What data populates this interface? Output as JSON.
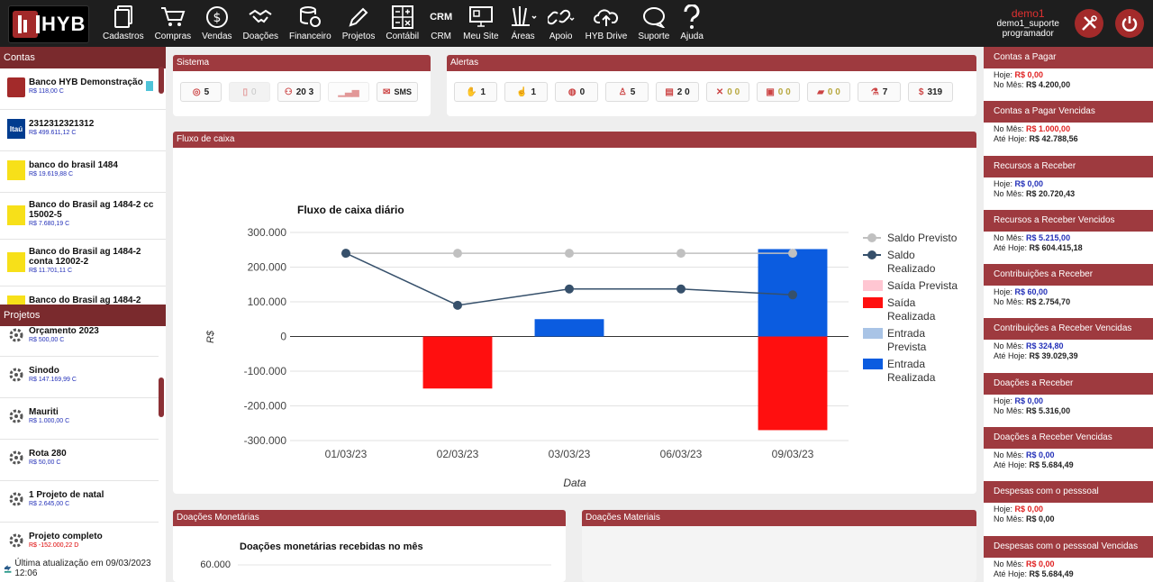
{
  "brand": {
    "name": "HYB"
  },
  "nav": [
    {
      "label": "Cadastros",
      "icon": "document-icon"
    },
    {
      "label": "Compras",
      "icon": "cart-icon"
    },
    {
      "label": "Vendas",
      "icon": "dollar-icon"
    },
    {
      "label": "Doações",
      "icon": "handshake-icon"
    },
    {
      "label": "Financeiro",
      "icon": "coins-icon"
    },
    {
      "label": "Projetos",
      "icon": "pencil-icon"
    },
    {
      "label": "Contábil",
      "icon": "calculator-icon"
    },
    {
      "label": "CRM",
      "icon": "crm-icon",
      "icon_text": "CRM"
    },
    {
      "label": "Meu Site",
      "icon": "monitor-icon"
    },
    {
      "label": "Áreas",
      "icon": "areas-icon"
    },
    {
      "label": "Apoio",
      "icon": "link-icon"
    },
    {
      "label": "HYB Drive",
      "icon": "cloud-upload-icon"
    },
    {
      "label": "Suporte",
      "icon": "chat-icon"
    },
    {
      "label": "Ajuda",
      "icon": "question-icon"
    }
  ],
  "user": {
    "name": "demo1",
    "login": "demo1_suporte",
    "role": "programador"
  },
  "left": {
    "contas_title": "Contas",
    "accounts": [
      {
        "name": "Banco HYB Demonstração",
        "value": "R$ 118,00 C",
        "icon": "hyb-bank-icon"
      },
      {
        "name": "2312312321312",
        "value": "R$ 499.611,12 C",
        "icon": "itau-icon",
        "icon_text": "Itaú"
      },
      {
        "name": "banco do brasil 1484",
        "value": "R$ 19.619,88 C",
        "icon": "bb-icon"
      },
      {
        "name": "Banco do Brasil ag 1484-2 cc 15002-5",
        "value": "R$ 7.680,19 C",
        "icon": "bb-icon"
      },
      {
        "name": "Banco do Brasil ag 1484-2 conta 12002-2",
        "value": "R$ 11.701,11 C",
        "icon": "bb-icon"
      },
      {
        "name": "Banco do Brasil ag 1484-2",
        "value": "",
        "icon": "bb-icon"
      }
    ],
    "projetos_title": "Projetos",
    "projects": [
      {
        "name": "Orçamento 2023",
        "value": "R$ 500,00 C",
        "neg": false
      },
      {
        "name": "Sinodo",
        "value": "R$ 147.169,99 C",
        "neg": false
      },
      {
        "name": "Mauriti",
        "value": "R$ 1.000,00 C",
        "neg": false
      },
      {
        "name": "Rota 280",
        "value": "R$ 50,00 C",
        "neg": false
      },
      {
        "name": "1 Projeto de natal",
        "value": "R$ 2.645,00 C",
        "neg": false
      },
      {
        "name": "Projeto completo",
        "value": "R$ -152.000,22 D",
        "neg": true
      }
    ],
    "updated": "Última atualização em 09/03/2023 12:06"
  },
  "sistema": {
    "title": "Sistema",
    "buttons": [
      {
        "icon": "target-icon",
        "count": "5",
        "disabled": false
      },
      {
        "icon": "phone-icon",
        "count": "0",
        "disabled": true
      },
      {
        "icon": "users-icon",
        "count": "20 3",
        "disabled": false
      },
      {
        "icon": "signal-icon",
        "count": "",
        "disabled": true
      },
      {
        "icon": "sms-icon",
        "count": "SMS",
        "disabled": false
      }
    ]
  },
  "alertas": {
    "title": "Alertas",
    "buttons": [
      {
        "icon": "hand-coin-icon",
        "count": "1",
        "dim": false
      },
      {
        "icon": "hand-give-icon",
        "count": "1",
        "dim": false
      },
      {
        "icon": "bag-icon",
        "count": "0",
        "dim": false
      },
      {
        "icon": "person-icon",
        "count": "5",
        "dim": false
      },
      {
        "icon": "ledger-icon",
        "count": "2 0",
        "dim": false
      },
      {
        "icon": "tools-icon",
        "count": "0 0",
        "dim": true
      },
      {
        "icon": "id-card-icon",
        "count": "0 0",
        "dim": true
      },
      {
        "icon": "cash-icon",
        "count": "0 0",
        "dim": true
      },
      {
        "icon": "flask-icon",
        "count": "7",
        "dim": false
      },
      {
        "icon": "bag-money-icon",
        "count": "319",
        "dim": false
      }
    ]
  },
  "fluxo": {
    "panel_title": "Fluxo de caixa"
  },
  "chart_data": [
    {
      "type": "bar",
      "title": "Fluxo de caixa diário",
      "xlabel": "Data",
      "ylabel": "R$",
      "ylim": [
        -300000,
        300000
      ],
      "yticks": [
        "300.000",
        "200.000",
        "100.000",
        "0",
        "-100.000",
        "-200.000",
        "-300.000"
      ],
      "ytick_values": [
        300000,
        200000,
        100000,
        0,
        -100000,
        -200000,
        -300000
      ],
      "categories": [
        "01/03/23",
        "02/03/23",
        "03/03/23",
        "06/03/23",
        "09/03/23"
      ],
      "legend_position": "right",
      "series": [
        {
          "name": "Saldo Previsto",
          "kind": "line",
          "color": "#c0c0c0",
          "values": [
            240000,
            240000,
            240000,
            240000,
            240000
          ]
        },
        {
          "name": "Saldo Realizado",
          "kind": "line",
          "color": "#36506b",
          "values": [
            240000,
            90000,
            137000,
            137000,
            120000
          ]
        },
        {
          "name": "Saída Prevista",
          "kind": "bar",
          "color": "#ffc6d2",
          "values": [
            0,
            0,
            0,
            0,
            0
          ]
        },
        {
          "name": "Saída Realizada",
          "kind": "bar",
          "color": "#ff0f0f",
          "values": [
            0,
            -150000,
            0,
            0,
            -270000
          ]
        },
        {
          "name": "Entrada Prevista",
          "kind": "bar",
          "color": "#a9c4e6",
          "values": [
            0,
            0,
            0,
            0,
            0
          ]
        },
        {
          "name": "Entrada Realizada",
          "kind": "bar",
          "color": "#0b5ce0",
          "values": [
            0,
            0,
            50000,
            0,
            252000
          ]
        }
      ]
    },
    {
      "type": "line",
      "title": "Doações monetárias recebidas no mês",
      "yticks": [
        "60.000"
      ]
    }
  ],
  "doacoes_monetarias": {
    "title": "Doações Monetárias"
  },
  "doacoes_materiais": {
    "title": "Doações Materiais"
  },
  "right": [
    {
      "title": "Contas a Pagar",
      "l1k": "Hoje:",
      "l1v": "R$ 0,00",
      "l1c": "red",
      "l2k": "No Mês:",
      "l2v": "R$ 4.200,00",
      "l2c": "dark"
    },
    {
      "title": "Contas a Pagar Vencidas",
      "l1k": "No Mês:",
      "l1v": "R$ 1.000,00",
      "l1c": "red",
      "l2k": "Até Hoje:",
      "l2v": "R$ 42.788,56",
      "l2c": "dark"
    },
    {
      "title": "Recursos a Receber",
      "l1k": "Hoje:",
      "l1v": "R$ 0,00",
      "l1c": "blue",
      "l2k": "No Mês:",
      "l2v": "R$ 20.720,43",
      "l2c": "dark"
    },
    {
      "title": "Recursos a Receber Vencidos",
      "l1k": "No Mês:",
      "l1v": "R$ 5.215,00",
      "l1c": "blue",
      "l2k": "Até Hoje:",
      "l2v": "R$ 604.415,18",
      "l2c": "dark"
    },
    {
      "title": "Contribuições a Receber",
      "l1k": "Hoje:",
      "l1v": "R$ 60,00",
      "l1c": "blue",
      "l2k": "No Mês:",
      "l2v": "R$ 2.754,70",
      "l2c": "dark"
    },
    {
      "title": "Contribuições a Receber Vencidas",
      "l1k": "No Mês:",
      "l1v": "R$ 324,80",
      "l1c": "blue",
      "l2k": "Até Hoje:",
      "l2v": "R$ 39.029,39",
      "l2c": "dark"
    },
    {
      "title": "Doações a Receber",
      "l1k": "Hoje:",
      "l1v": "R$ 0,00",
      "l1c": "blue",
      "l2k": "No Mês:",
      "l2v": "R$ 5.316,00",
      "l2c": "dark"
    },
    {
      "title": "Doações a Receber Vencidas",
      "l1k": "No Mês:",
      "l1v": "R$ 0,00",
      "l1c": "blue",
      "l2k": "Até Hoje:",
      "l2v": "R$ 5.684,49",
      "l2c": "dark"
    },
    {
      "title": "Despesas com o pesssoal",
      "l1k": "Hoje:",
      "l1v": "R$ 0,00",
      "l1c": "red",
      "l2k": "No Mês:",
      "l2v": "R$ 0,00",
      "l2c": "dark"
    },
    {
      "title": "Despesas com o pesssoal Vencidas",
      "l1k": "No Mês:",
      "l1v": "R$ 0,00",
      "l1c": "red",
      "l2k": "Até Hoje:",
      "l2v": "R$ 5.684,49",
      "l2c": "dark"
    }
  ]
}
